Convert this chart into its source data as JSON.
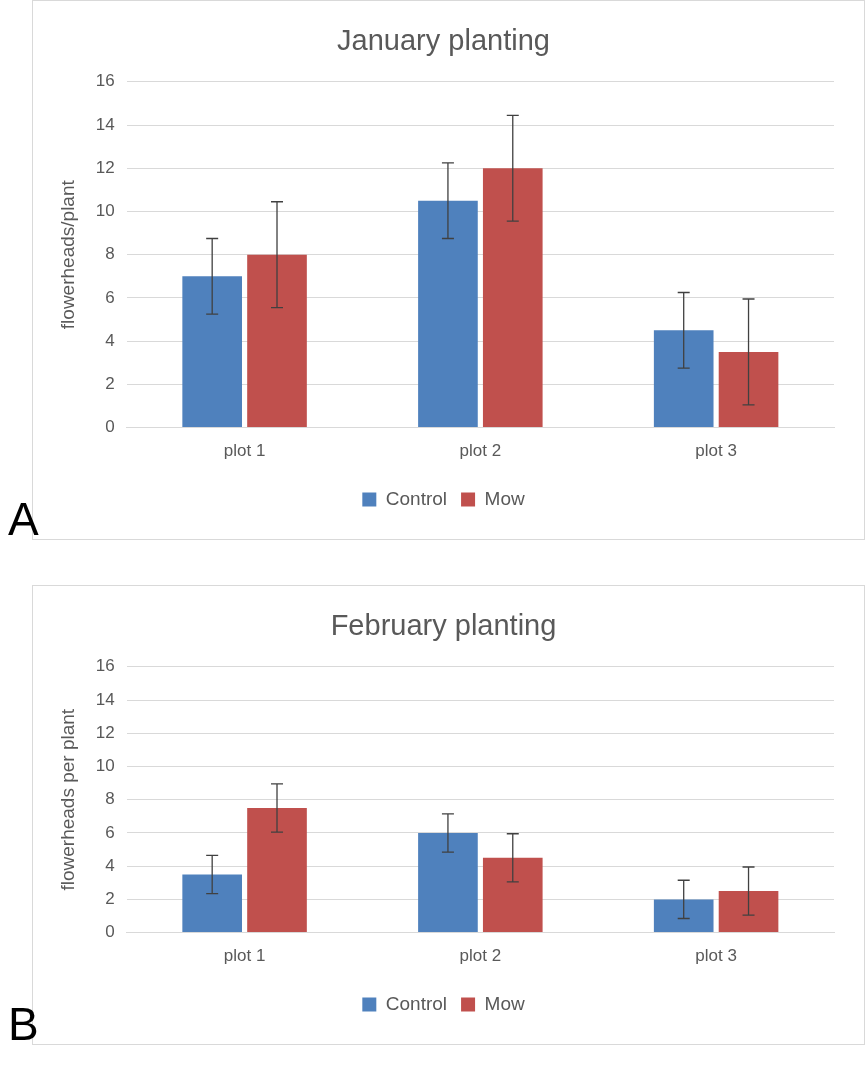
{
  "chart_data": [
    {
      "type": "bar",
      "title": "January planting",
      "ylabel": "flowerheads/plant",
      "categories": [
        "plot 1",
        "plot 2",
        "plot 3"
      ],
      "series": [
        {
          "name": "Control",
          "color": "#4f81bd",
          "values": [
            7,
            10.5,
            4.5
          ],
          "errors": [
            1.75,
            1.75,
            1.75
          ]
        },
        {
          "name": "Mow",
          "color": "#c0504d",
          "values": [
            8,
            12,
            3.5
          ],
          "errors": [
            2.45,
            2.45,
            2.45
          ]
        }
      ],
      "ylim": [
        0,
        16
      ],
      "yticks": [
        0,
        2,
        4,
        6,
        8,
        10,
        12,
        14,
        16
      ],
      "grid": "y",
      "legend": "bottom",
      "annotations": [
        "A"
      ]
    },
    {
      "type": "bar",
      "title": "February planting",
      "ylabel": "flowerheads per plant",
      "categories": [
        "plot 1",
        "plot 2",
        "plot 3"
      ],
      "series": [
        {
          "name": "Control",
          "color": "#4f81bd",
          "values": [
            3.5,
            6,
            2
          ],
          "errors": [
            1.15,
            1.15,
            1.15
          ]
        },
        {
          "name": "Mow",
          "color": "#c0504d",
          "values": [
            7.5,
            4.5,
            2.5
          ],
          "errors": [
            1.45,
            1.45,
            1.45
          ]
        }
      ],
      "ylim": [
        0,
        16
      ],
      "yticks": [
        0,
        2,
        4,
        6,
        8,
        10,
        12,
        14,
        16
      ],
      "grid": "y",
      "legend": "bottom",
      "annotations": [
        "B"
      ]
    }
  ]
}
